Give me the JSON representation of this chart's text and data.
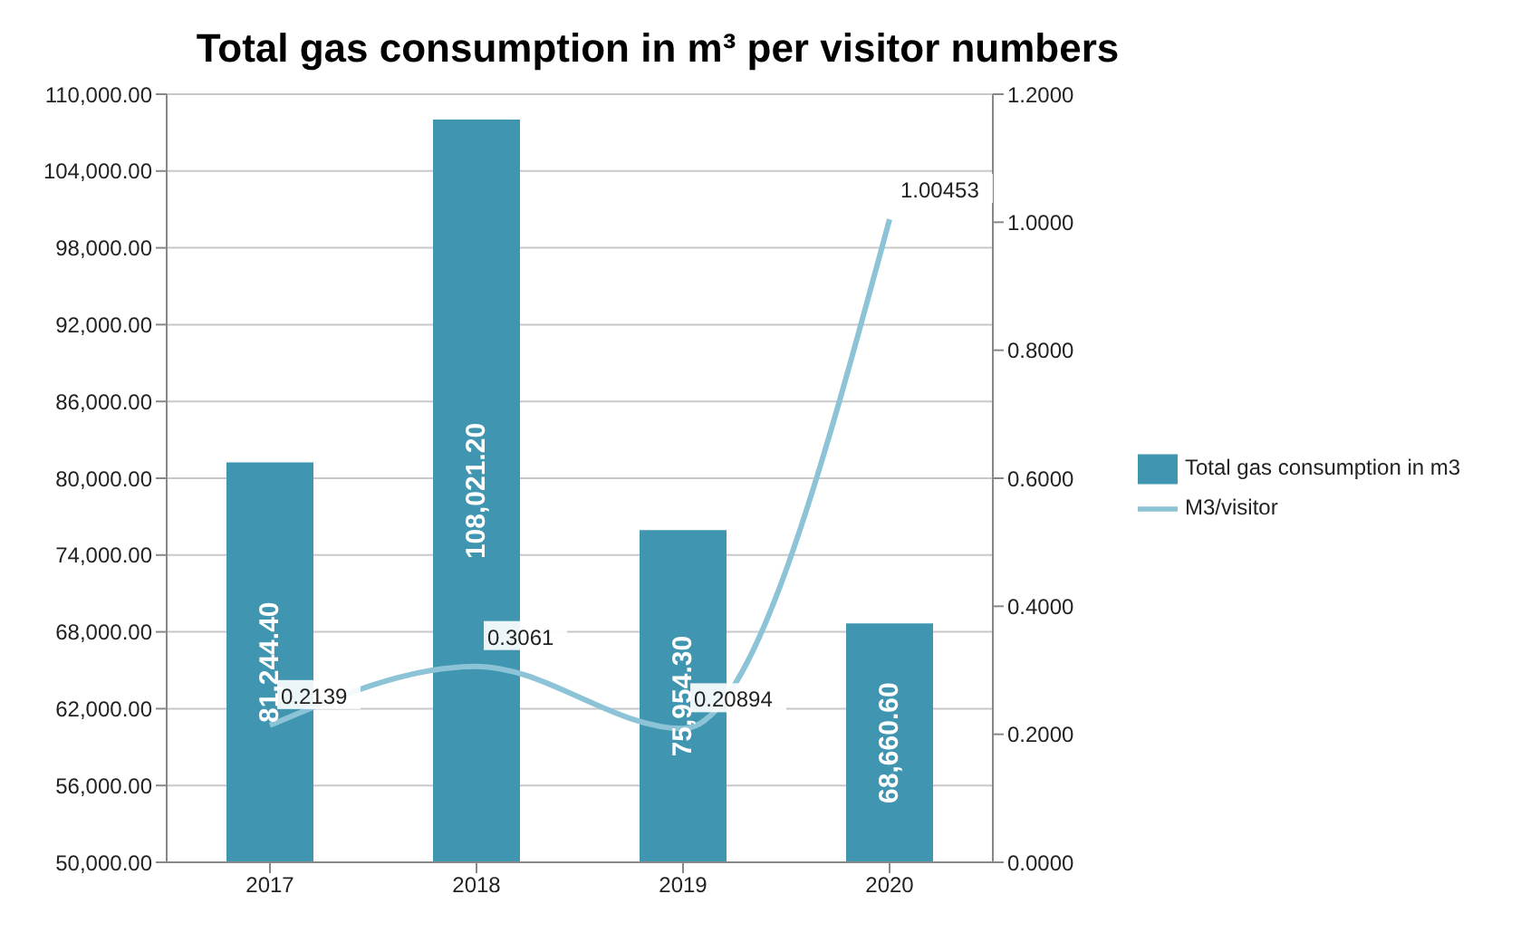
{
  "chart_data": {
    "type": "bar",
    "title": "Total gas consumption in m³ per visitor numbers",
    "categories": [
      "2017",
      "2018",
      "2019",
      "2020"
    ],
    "series": [
      {
        "name": "Total gas consumption in m3",
        "color": "#4096b0",
        "values": [
          81244.4,
          108021.2,
          75954.3,
          68660.6
        ],
        "value_labels": [
          "81,244.40",
          "108,021.20",
          "75,954.30",
          "68,660.60"
        ]
      },
      {
        "name": "M3/visitor",
        "type": "line",
        "axis": "y2",
        "color": "#8cc3d6",
        "values": [
          0.2139,
          0.3061,
          0.20894,
          1.00453
        ],
        "value_labels": [
          "0.2139",
          "0.3061",
          "0.20894",
          "1.00453"
        ]
      }
    ],
    "ylim": [
      50000,
      110000
    ],
    "yticks": [
      {
        "value": 50000,
        "label": "50,000.00"
      },
      {
        "value": 56000,
        "label": "56,000.00"
      },
      {
        "value": 62000,
        "label": "62,000.00"
      },
      {
        "value": 68000,
        "label": "68,000.00"
      },
      {
        "value": 74000,
        "label": "74,000.00"
      },
      {
        "value": 80000,
        "label": "80,000.00"
      },
      {
        "value": 86000,
        "label": "86,000.00"
      },
      {
        "value": 92000,
        "label": "92,000.00"
      },
      {
        "value": 98000,
        "label": "98,000.00"
      },
      {
        "value": 104000,
        "label": "104,000.00"
      },
      {
        "value": 110000,
        "label": "110,000.00"
      }
    ],
    "y2lim": [
      0,
      1.2
    ],
    "y2ticks": [
      {
        "value": 0,
        "label": "0.0000"
      },
      {
        "value": 0.2,
        "label": "0.2000"
      },
      {
        "value": 0.4,
        "label": "0.4000"
      },
      {
        "value": 0.6,
        "label": "0.6000"
      },
      {
        "value": 0.8,
        "label": "0.8000"
      },
      {
        "value": 1,
        "label": "1.0000"
      },
      {
        "value": 1.2,
        "label": "1.2000"
      }
    ],
    "grid": "y",
    "legend": "right",
    "marker": "none",
    "line_style": "solid"
  }
}
